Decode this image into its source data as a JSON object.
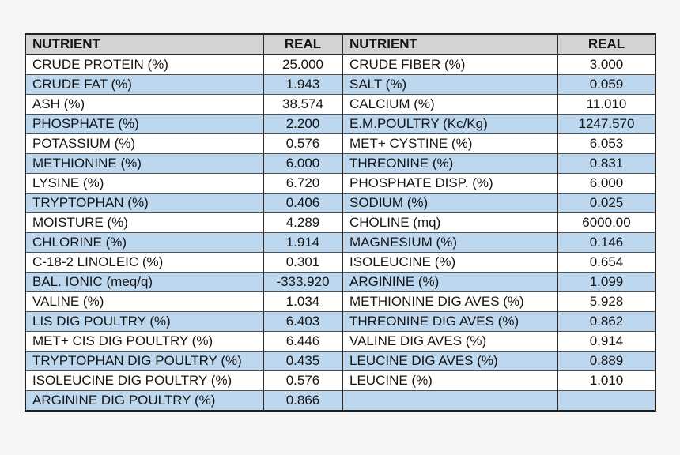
{
  "page": {
    "background_color": "#f5f5f5"
  },
  "table": {
    "colors": {
      "header_bg": "#d3d3d3",
      "stripe_blue": "#bdd7ee",
      "row_white": "#ffffff",
      "outer_border": "#1f1f1f",
      "inner_border": "#4f4f4f",
      "text": "#141414"
    },
    "headers": {
      "nutrient_left": "NUTRIENT",
      "real_left": "REAL",
      "nutrient_right": "NUTRIENT",
      "real_right": "REAL"
    },
    "rows": [
      [
        "CRUDE PROTEIN (%)",
        "25.000",
        "CRUDE FIBER (%)",
        "3.000"
      ],
      [
        "CRUDE FAT (%)",
        "1.943",
        "SALT (%)",
        "0.059"
      ],
      [
        "ASH (%)",
        "38.574",
        "CALCIUM (%)",
        "11.010"
      ],
      [
        "PHOSPHATE (%)",
        "2.200",
        "E.M.POULTRY (Kc/Kg)",
        "1247.570"
      ],
      [
        "POTASSIUM (%)",
        "0.576",
        "MET+ CYSTINE (%)",
        "6.053"
      ],
      [
        "METHIONINE (%)",
        "6.000",
        "THREONINE (%)",
        "0.831"
      ],
      [
        "LYSINE (%)",
        "6.720",
        "PHOSPHATE DISP. (%)",
        "6.000"
      ],
      [
        "TRYPTOPHAN (%)",
        "0.406",
        "SODIUM (%)",
        "0.025"
      ],
      [
        "MOISTURE (%)",
        "4.289",
        "CHOLINE (mq)",
        "6000.00"
      ],
      [
        "CHLORINE (%)",
        "1.914",
        "MAGNESIUM (%)",
        "0.146"
      ],
      [
        "C-18-2 LINOLEIC (%)",
        "0.301",
        "ISOLEUCINE (%)",
        "0.654"
      ],
      [
        "BAL. IONIC (meq/q)",
        "-333.920",
        "ARGININE (%)",
        "1.099"
      ],
      [
        "VALINE (%)",
        "1.034",
        "METHIONINE DIG AVES (%)",
        "5.928"
      ],
      [
        "LIS DIG POULTRY (%)",
        "6.403",
        "THREONINE DIG AVES (%)",
        "0.862"
      ],
      [
        "MET+ CIS DIG POULTRY (%)",
        "6.446",
        "VALINE DIG AVES (%)",
        "0.914"
      ],
      [
        "TRYPTOPHAN DIG POULTRY (%)",
        "0.435",
        "LEUCINE DIG AVES (%)",
        "0.889"
      ],
      [
        "ISOLEUCINE DIG POULTRY (%)",
        "0.576",
        "LEUCINE (%)",
        "1.010"
      ],
      [
        "ARGININE DIG POULTRY (%)",
        "0.866",
        "",
        ""
      ]
    ]
  }
}
